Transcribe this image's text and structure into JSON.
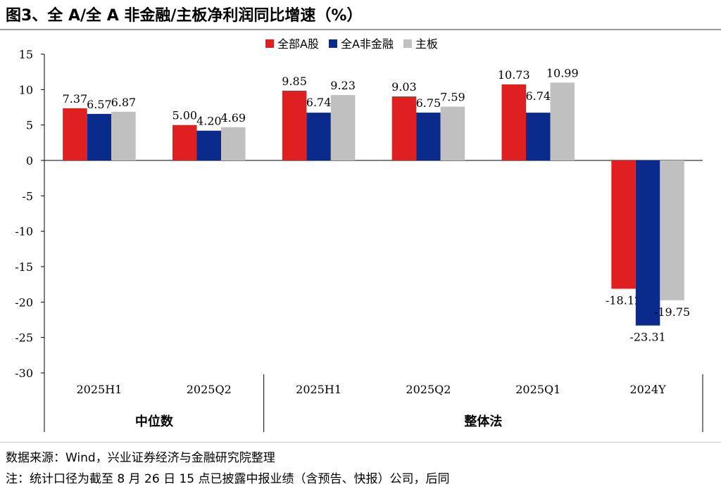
{
  "header": {
    "title": "图3、全 A/全 A 非金融/主板净利润同比增速（%）"
  },
  "footer": {
    "source": "数据来源：Wind，兴业证券经济与金融研究院整理",
    "note": "注：统计口径为截至 8 月 26 日 15 点已披露中报业绩（含预告、快报）公司，后同"
  },
  "chart_data": {
    "type": "bar",
    "title": "图3、全 A/全 A 非金融/主板净利润同比增速（%）",
    "xlabel": "",
    "ylabel": "",
    "ylim": [
      -30,
      15
    ],
    "yticks": [
      15,
      10,
      5,
      0,
      -5,
      -10,
      -15,
      -20,
      -25,
      -30
    ],
    "grid": false,
    "legend": "top-center",
    "categories": [
      "2025H1",
      "2025Q2",
      "2025H1",
      "2025Q2",
      "2025Q1",
      "2024Y"
    ],
    "groups": [
      {
        "label": "中位数",
        "categories": [
          "2025H1",
          "2025Q2"
        ]
      },
      {
        "label": "整体法",
        "categories": [
          "2025H1",
          "2025Q2",
          "2025Q1",
          "2024Y"
        ]
      }
    ],
    "series": [
      {
        "name": "全部A股",
        "color": "#e02020",
        "values": [
          7.37,
          5.0,
          9.85,
          9.03,
          10.73,
          -18.12
        ]
      },
      {
        "name": "全A非金融",
        "color": "#0a2a8c",
        "values": [
          6.57,
          4.2,
          6.74,
          6.75,
          6.74,
          -23.31
        ]
      },
      {
        "name": "主板",
        "color": "#c0c0c0",
        "values": [
          6.87,
          4.69,
          9.23,
          7.59,
          10.99,
          -19.75
        ]
      }
    ],
    "data_labels": [
      [
        "7.37",
        "5.00",
        "9.85",
        "9.03",
        "10.73",
        "-18.12"
      ],
      [
        "6.57",
        "4.20",
        "6.74",
        "6.75",
        "6.74",
        "-23.31"
      ],
      [
        "6.87",
        "4.69",
        "9.23",
        "7.59",
        "10.99",
        "-19.75"
      ]
    ]
  }
}
